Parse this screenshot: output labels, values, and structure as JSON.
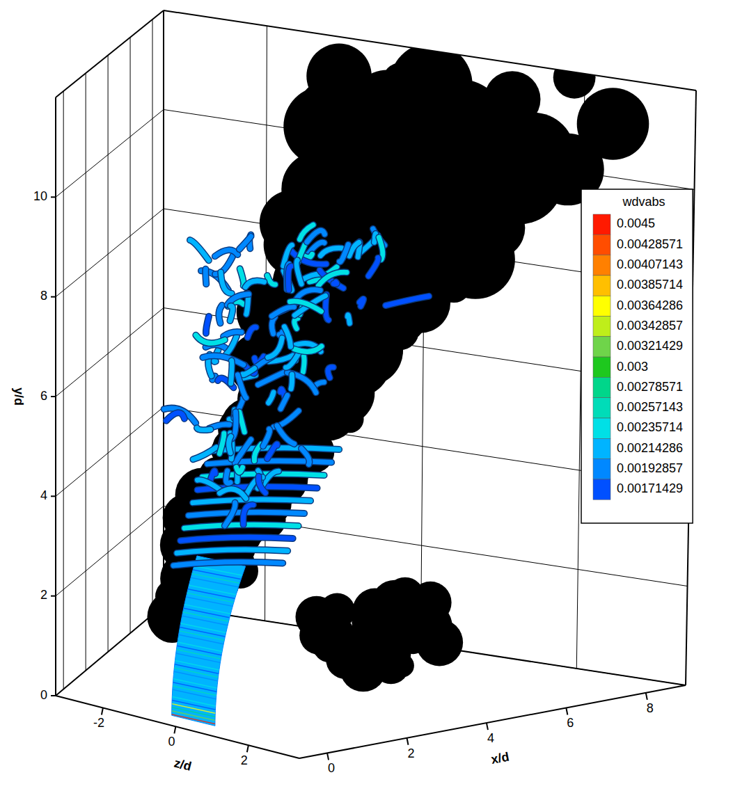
{
  "chart_data": {
    "type": "isosurface3d",
    "x_label": "x/d",
    "y_label": "y/d",
    "z_label": "z/d",
    "xlim": [
      -0.7,
      9
    ],
    "ylim": [
      0,
      12
    ],
    "zlim": [
      -3.3,
      3.4
    ],
    "xticks": [
      0,
      2,
      4,
      6,
      8
    ],
    "yticks": [
      0,
      2,
      4,
      6,
      8,
      10
    ],
    "zticks": [
      -2,
      0,
      2
    ],
    "grid": true,
    "colorbar": {
      "title": "wdvabs",
      "levels": [
        0.0045,
        0.00428571,
        0.00407143,
        0.00385714,
        0.00364286,
        0.00342857,
        0.00321429,
        0.003,
        0.00278571,
        0.00257143,
        0.00235714,
        0.00214286,
        0.00192857,
        0.00171429
      ],
      "colors": [
        "#ff1a00",
        "#ff4d00",
        "#ff8000",
        "#ffbf00",
        "#ffff00",
        "#bfee1a",
        "#6fd44a",
        "#1ec81e",
        "#00d68a",
        "#00dcb8",
        "#00e0e6",
        "#00b4ff",
        "#0088ff",
        "#0050ff"
      ]
    }
  }
}
